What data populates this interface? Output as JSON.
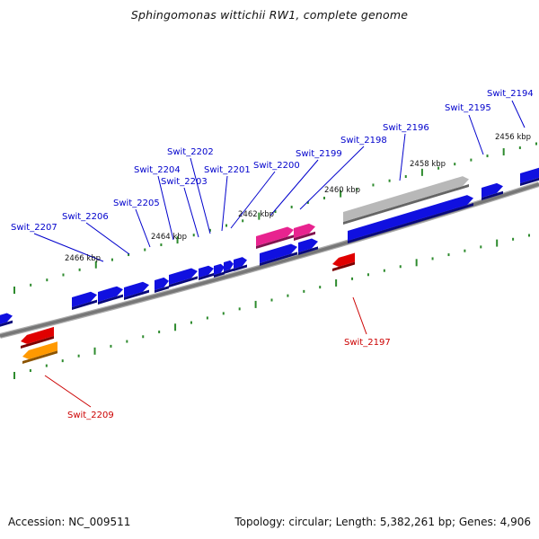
{
  "title": "Sphingomonas wittichii RW1, complete genome",
  "footer": {
    "accession": "Accession: NC_009511",
    "summary": "Topology: circular; Length: 5,382,261 bp; Genes: 4,906"
  },
  "colors": {
    "backbone": "#777777",
    "tick": "#2e8b2e",
    "forward_gene": "#1010e0",
    "reverse_gene": "#e00000",
    "rna_gene": "#e8238f",
    "pseudo_gene": "#b8b8b8",
    "other_gene": "#ff9900",
    "label_forward": "#0000cc",
    "label_reverse": "#cc0000"
  },
  "ticks": [
    "2456 kbp",
    "2458 kbp",
    "2460 kbp",
    "2462 kbp",
    "2464 kbp",
    "2466 kbp"
  ],
  "genes": [
    {
      "id": "Swit_2194",
      "strand": "+"
    },
    {
      "id": "Swit_2195",
      "strand": "+"
    },
    {
      "id": "Swit_2196",
      "strand": "+"
    },
    {
      "id": "Swit_2197",
      "strand": "-"
    },
    {
      "id": "Swit_2198",
      "strand": "+"
    },
    {
      "id": "Swit_2199",
      "strand": "+"
    },
    {
      "id": "Swit_2200",
      "strand": "+"
    },
    {
      "id": "Swit_2201",
      "strand": "+"
    },
    {
      "id": "Swit_2202",
      "strand": "+"
    },
    {
      "id": "Swit_2203",
      "strand": "+"
    },
    {
      "id": "Swit_2204",
      "strand": "+"
    },
    {
      "id": "Swit_2205",
      "strand": "+"
    },
    {
      "id": "Swit_2206",
      "strand": "+"
    },
    {
      "id": "Swit_2207",
      "strand": "+"
    },
    {
      "id": "Swit_2209",
      "strand": "-"
    }
  ]
}
